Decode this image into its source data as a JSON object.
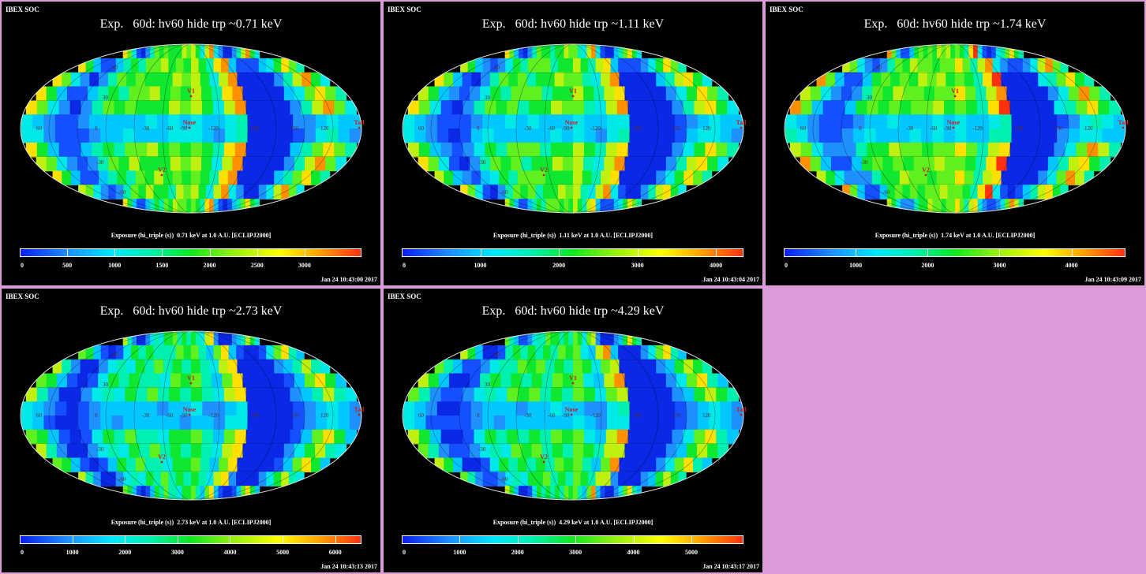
{
  "panels": [
    {
      "soc": "IBEX SOC",
      "title": "Exp.   60d: hv60 hide trp ~0.71 keV",
      "caption": "Exposure (hi_triple (s))  0.71 keV at 1.0 A.U. [ECLIPJ2000]",
      "timestamp": "Jan 24 10:43:00 2017",
      "scale_max": 3600,
      "ticks": [
        "0",
        "500",
        "1000",
        "1500",
        "2000",
        "2500",
        "3000"
      ],
      "tick_values": [
        0,
        500,
        1000,
        1500,
        2000,
        2500,
        3000
      ]
    },
    {
      "soc": "IBEX SOC",
      "title": "Exp.   60d: hv60 hide trp ~1.11 keV",
      "caption": "Exposure (hi_triple (s))  1.11 keV at 1.0 A.U. [ECLIPJ2000]",
      "timestamp": "Jan 24 10:43:04 2017",
      "scale_max": 4350,
      "ticks": [
        "0",
        "1000",
        "2000",
        "3000",
        "4000"
      ],
      "tick_values": [
        0,
        1000,
        2000,
        3000,
        4000
      ]
    },
    {
      "soc": "IBEX SOC",
      "title": "Exp.   60d: hv60 hide trp ~1.74 keV",
      "caption": "Exposure (hi_triple (s))  1.74 keV at 1.0 A.U. [ECLIPJ2000]",
      "timestamp": "Jan 24 10:43:09 2017",
      "scale_max": 4750,
      "ticks": [
        "0",
        "1000",
        "2000",
        "3000",
        "4000"
      ],
      "tick_values": [
        0,
        1000,
        2000,
        3000,
        4000
      ]
    },
    {
      "soc": "IBEX SOC",
      "title": "Exp.   60d: hv60 hide trp ~2.73 keV",
      "caption": "Exposure (hi_triple (s))  2.73 keV at 1.0 A.U. [ECLIPJ2000]",
      "timestamp": "Jan 24 10:43:13 2017",
      "scale_max": 6500,
      "ticks": [
        "0",
        "1000",
        "2000",
        "3000",
        "4000",
        "5000",
        "6000"
      ],
      "tick_values": [
        0,
        1000,
        2000,
        3000,
        4000,
        5000,
        6000
      ]
    },
    {
      "soc": "IBEX SOC",
      "title": "Exp.   60d: hv60 hide trp ~4.29 keV",
      "caption": "Exposure (hi_triple (s))  4.29 keV at 1.0 A.U. [ECLIPJ2000]",
      "timestamp": "Jan 24 10:43:17 2017",
      "scale_max": 5900,
      "ticks": [
        "0",
        "1000",
        "2000",
        "3000",
        "4000",
        "5000"
      ],
      "tick_values": [
        0,
        1000,
        2000,
        3000,
        4000,
        5000
      ]
    }
  ],
  "map_labels": {
    "v1": "V1",
    "v2": "V2",
    "nose": "Nose",
    "tail": "Tail",
    "lon": [
      "60",
      "0",
      "-30",
      "-60",
      "-90",
      "-120",
      "180",
      "150",
      "120"
    ],
    "lat": [
      "60",
      "30",
      "-30",
      "-60"
    ]
  },
  "colors": {
    "background": "#dc9cdc",
    "panel": "#000000",
    "colorbar": [
      "#0a1ef0",
      "#1e90ff",
      "#00e8ff",
      "#00f0b0",
      "#10e820",
      "#90f010",
      "#ffff00",
      "#ffa000",
      "#ff3010"
    ]
  }
}
